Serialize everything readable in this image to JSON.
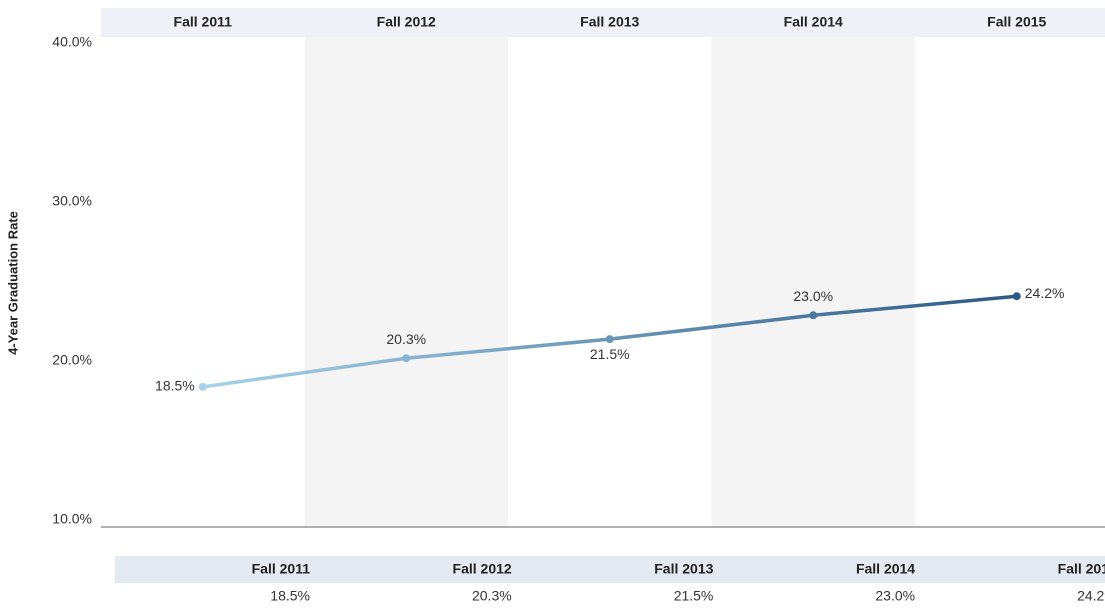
{
  "chart_data": {
    "type": "line",
    "y_label": "4-Year Graduation Rate",
    "categories": [
      "Fall 2011",
      "Fall 2012",
      "Fall 2013",
      "Fall 2014",
      "Fall 2015"
    ],
    "values": [
      18.5,
      20.3,
      21.5,
      23.0,
      24.2
    ],
    "value_labels": [
      "18.5%",
      "20.3%",
      "21.5%",
      "23.0%",
      "24.2%"
    ],
    "gradient": [
      "#a8d2ea",
      "#2d5986"
    ],
    "ylim": [
      10,
      40
    ],
    "yticks": [
      {
        "value": 10,
        "label": "10.0%"
      },
      {
        "value": 20,
        "label": "20.0%"
      },
      {
        "value": 30,
        "label": "30.0%"
      },
      {
        "value": 40,
        "label": "40.0%"
      }
    ],
    "grid": false
  }
}
